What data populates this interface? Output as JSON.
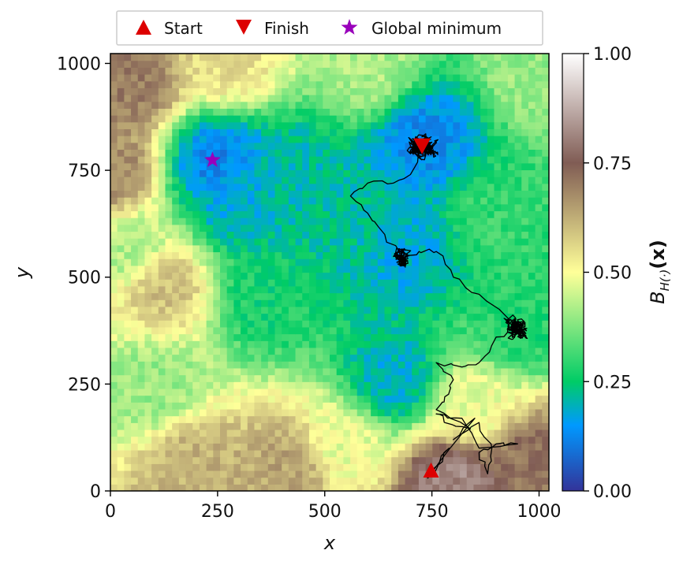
{
  "chart_data": {
    "type": "heatmap",
    "xlabel": "x",
    "ylabel": "y",
    "xlim": [
      0,
      1023
    ],
    "ylim": [
      0,
      1023
    ],
    "xticks": [
      0,
      250,
      500,
      750,
      1000
    ],
    "yticks": [
      0,
      250,
      500,
      750,
      1000
    ],
    "xtick_labels": [
      "0",
      "250",
      "500",
      "750",
      "1000"
    ],
    "ytick_labels": [
      "0",
      "250",
      "500",
      "750",
      "1000"
    ],
    "colorbar": {
      "label": "B_{H(·)}(x)",
      "label_main": "B",
      "label_sub": "H(·)",
      "label_arg": "(x)",
      "range": [
        0.0,
        1.0
      ],
      "ticks": [
        0.0,
        0.25,
        0.5,
        0.75,
        1.0
      ],
      "tick_labels": [
        "0.00",
        "0.25",
        "0.50",
        "0.75",
        "1.00"
      ],
      "colormap": "terrain",
      "colormap_stops": [
        {
          "v": 0.0,
          "color": "#333399"
        },
        {
          "v": 0.15,
          "color": "#0099ff"
        },
        {
          "v": 0.25,
          "color": "#00cc66"
        },
        {
          "v": 0.5,
          "color": "#ffff99"
        },
        {
          "v": 0.75,
          "color": "#805c54"
        },
        {
          "v": 1.0,
          "color": "#ffffff"
        }
      ]
    },
    "legend": {
      "placement": "top-center",
      "entries": [
        {
          "label": "Start",
          "marker": "triangle-up",
          "color": "#dd0000"
        },
        {
          "label": "Finish",
          "marker": "triangle-down",
          "color": "#dd0000"
        },
        {
          "label": "Global minimum",
          "marker": "star",
          "color": "#9900bb"
        }
      ]
    },
    "field_anchors": [
      {
        "x": 730,
        "y": 820,
        "value": 0.13
      },
      {
        "x": 690,
        "y": 560,
        "value": 0.18
      },
      {
        "x": 250,
        "y": 770,
        "value": 0.12
      },
      {
        "x": 290,
        "y": 680,
        "value": 0.18
      },
      {
        "x": 660,
        "y": 260,
        "value": 0.19
      },
      {
        "x": 440,
        "y": 740,
        "value": 0.21
      },
      {
        "x": 560,
        "y": 650,
        "value": 0.22
      },
      {
        "x": 360,
        "y": 450,
        "value": 0.27
      },
      {
        "x": 950,
        "y": 380,
        "value": 0.28
      },
      {
        "x": 900,
        "y": 650,
        "value": 0.3
      },
      {
        "x": 50,
        "y": 560,
        "value": 0.42
      },
      {
        "x": 0,
        "y": 750,
        "value": 0.68
      },
      {
        "x": 50,
        "y": 960,
        "value": 0.7
      },
      {
        "x": 280,
        "y": 1010,
        "value": 0.55
      },
      {
        "x": 120,
        "y": 480,
        "value": 0.6
      },
      {
        "x": 100,
        "y": 250,
        "value": 0.4
      },
      {
        "x": 200,
        "y": 60,
        "value": 0.62
      },
      {
        "x": 420,
        "y": 60,
        "value": 0.64
      },
      {
        "x": 540,
        "y": 110,
        "value": 0.48
      },
      {
        "x": 800,
        "y": 20,
        "value": 0.82
      },
      {
        "x": 980,
        "y": 80,
        "value": 0.72
      },
      {
        "x": 850,
        "y": 200,
        "value": 0.48
      },
      {
        "x": 1000,
        "y": 980,
        "value": 0.4
      },
      {
        "x": 600,
        "y": 990,
        "value": 0.42
      }
    ],
    "path_clusters": [
      {
        "x": 950,
        "y": 380,
        "spread": 40,
        "steps": 260
      },
      {
        "x": 680,
        "y": 545,
        "spread": 32,
        "steps": 220
      },
      {
        "x": 640,
        "y": 610,
        "spread": 30,
        "steps": 160
      },
      {
        "x": 730,
        "y": 805,
        "spread": 42,
        "steps": 380
      }
    ],
    "path_waypoints": [
      [
        750,
        48
      ],
      [
        790,
        100
      ],
      [
        740,
        30
      ],
      [
        850,
        170
      ],
      [
        800,
        120
      ],
      [
        860,
        160
      ],
      [
        890,
        100
      ],
      [
        880,
        40
      ],
      [
        860,
        90
      ],
      [
        900,
        110
      ],
      [
        950,
        110
      ],
      [
        860,
        100
      ],
      [
        820,
        170
      ],
      [
        760,
        180
      ],
      [
        780,
        160
      ],
      [
        840,
        145
      ],
      [
        760,
        190
      ],
      [
        780,
        220
      ],
      [
        800,
        260
      ],
      [
        760,
        300
      ],
      [
        820,
        290
      ],
      [
        860,
        300
      ],
      [
        900,
        360
      ],
      [
        950,
        380
      ],
      [
        860,
        460
      ],
      [
        800,
        500
      ],
      [
        760,
        560
      ],
      [
        720,
        560
      ],
      [
        680,
        545
      ],
      [
        640,
        600
      ],
      [
        600,
        650
      ],
      [
        560,
        690
      ],
      [
        600,
        720
      ],
      [
        660,
        720
      ],
      [
        700,
        740
      ],
      [
        730,
        805
      ]
    ],
    "points": [
      {
        "label": "Start",
        "x": 748,
        "y": 48
      },
      {
        "label": "Finish",
        "x": 727,
        "y": 808
      },
      {
        "label": "Global minimum",
        "x": 238,
        "y": 774
      }
    ]
  }
}
